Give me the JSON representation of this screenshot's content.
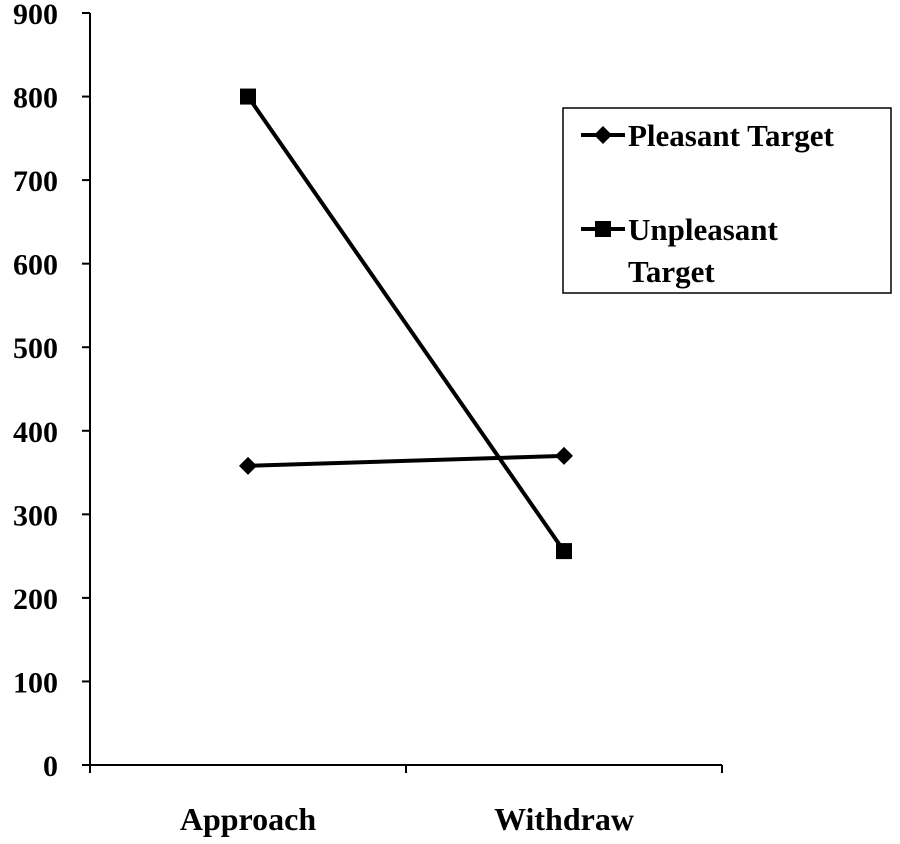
{
  "chart_data": {
    "type": "line",
    "title": "",
    "xlabel": "",
    "ylabel": "",
    "categories": [
      "Approach",
      "Withdraw"
    ],
    "ylim": [
      0,
      900
    ],
    "yticks": [
      "0",
      "100",
      "200",
      "300",
      "400",
      "500",
      "600",
      "700",
      "800",
      "900"
    ],
    "grid": false,
    "legend_position": "top-right",
    "series": [
      {
        "name": "Pleasant Target",
        "marker": "diamond",
        "color": "#000000",
        "values": [
          358,
          370
        ]
      },
      {
        "name": "Unpleasant Target",
        "marker": "square",
        "color": "#000000",
        "values": [
          800,
          256
        ]
      }
    ]
  }
}
